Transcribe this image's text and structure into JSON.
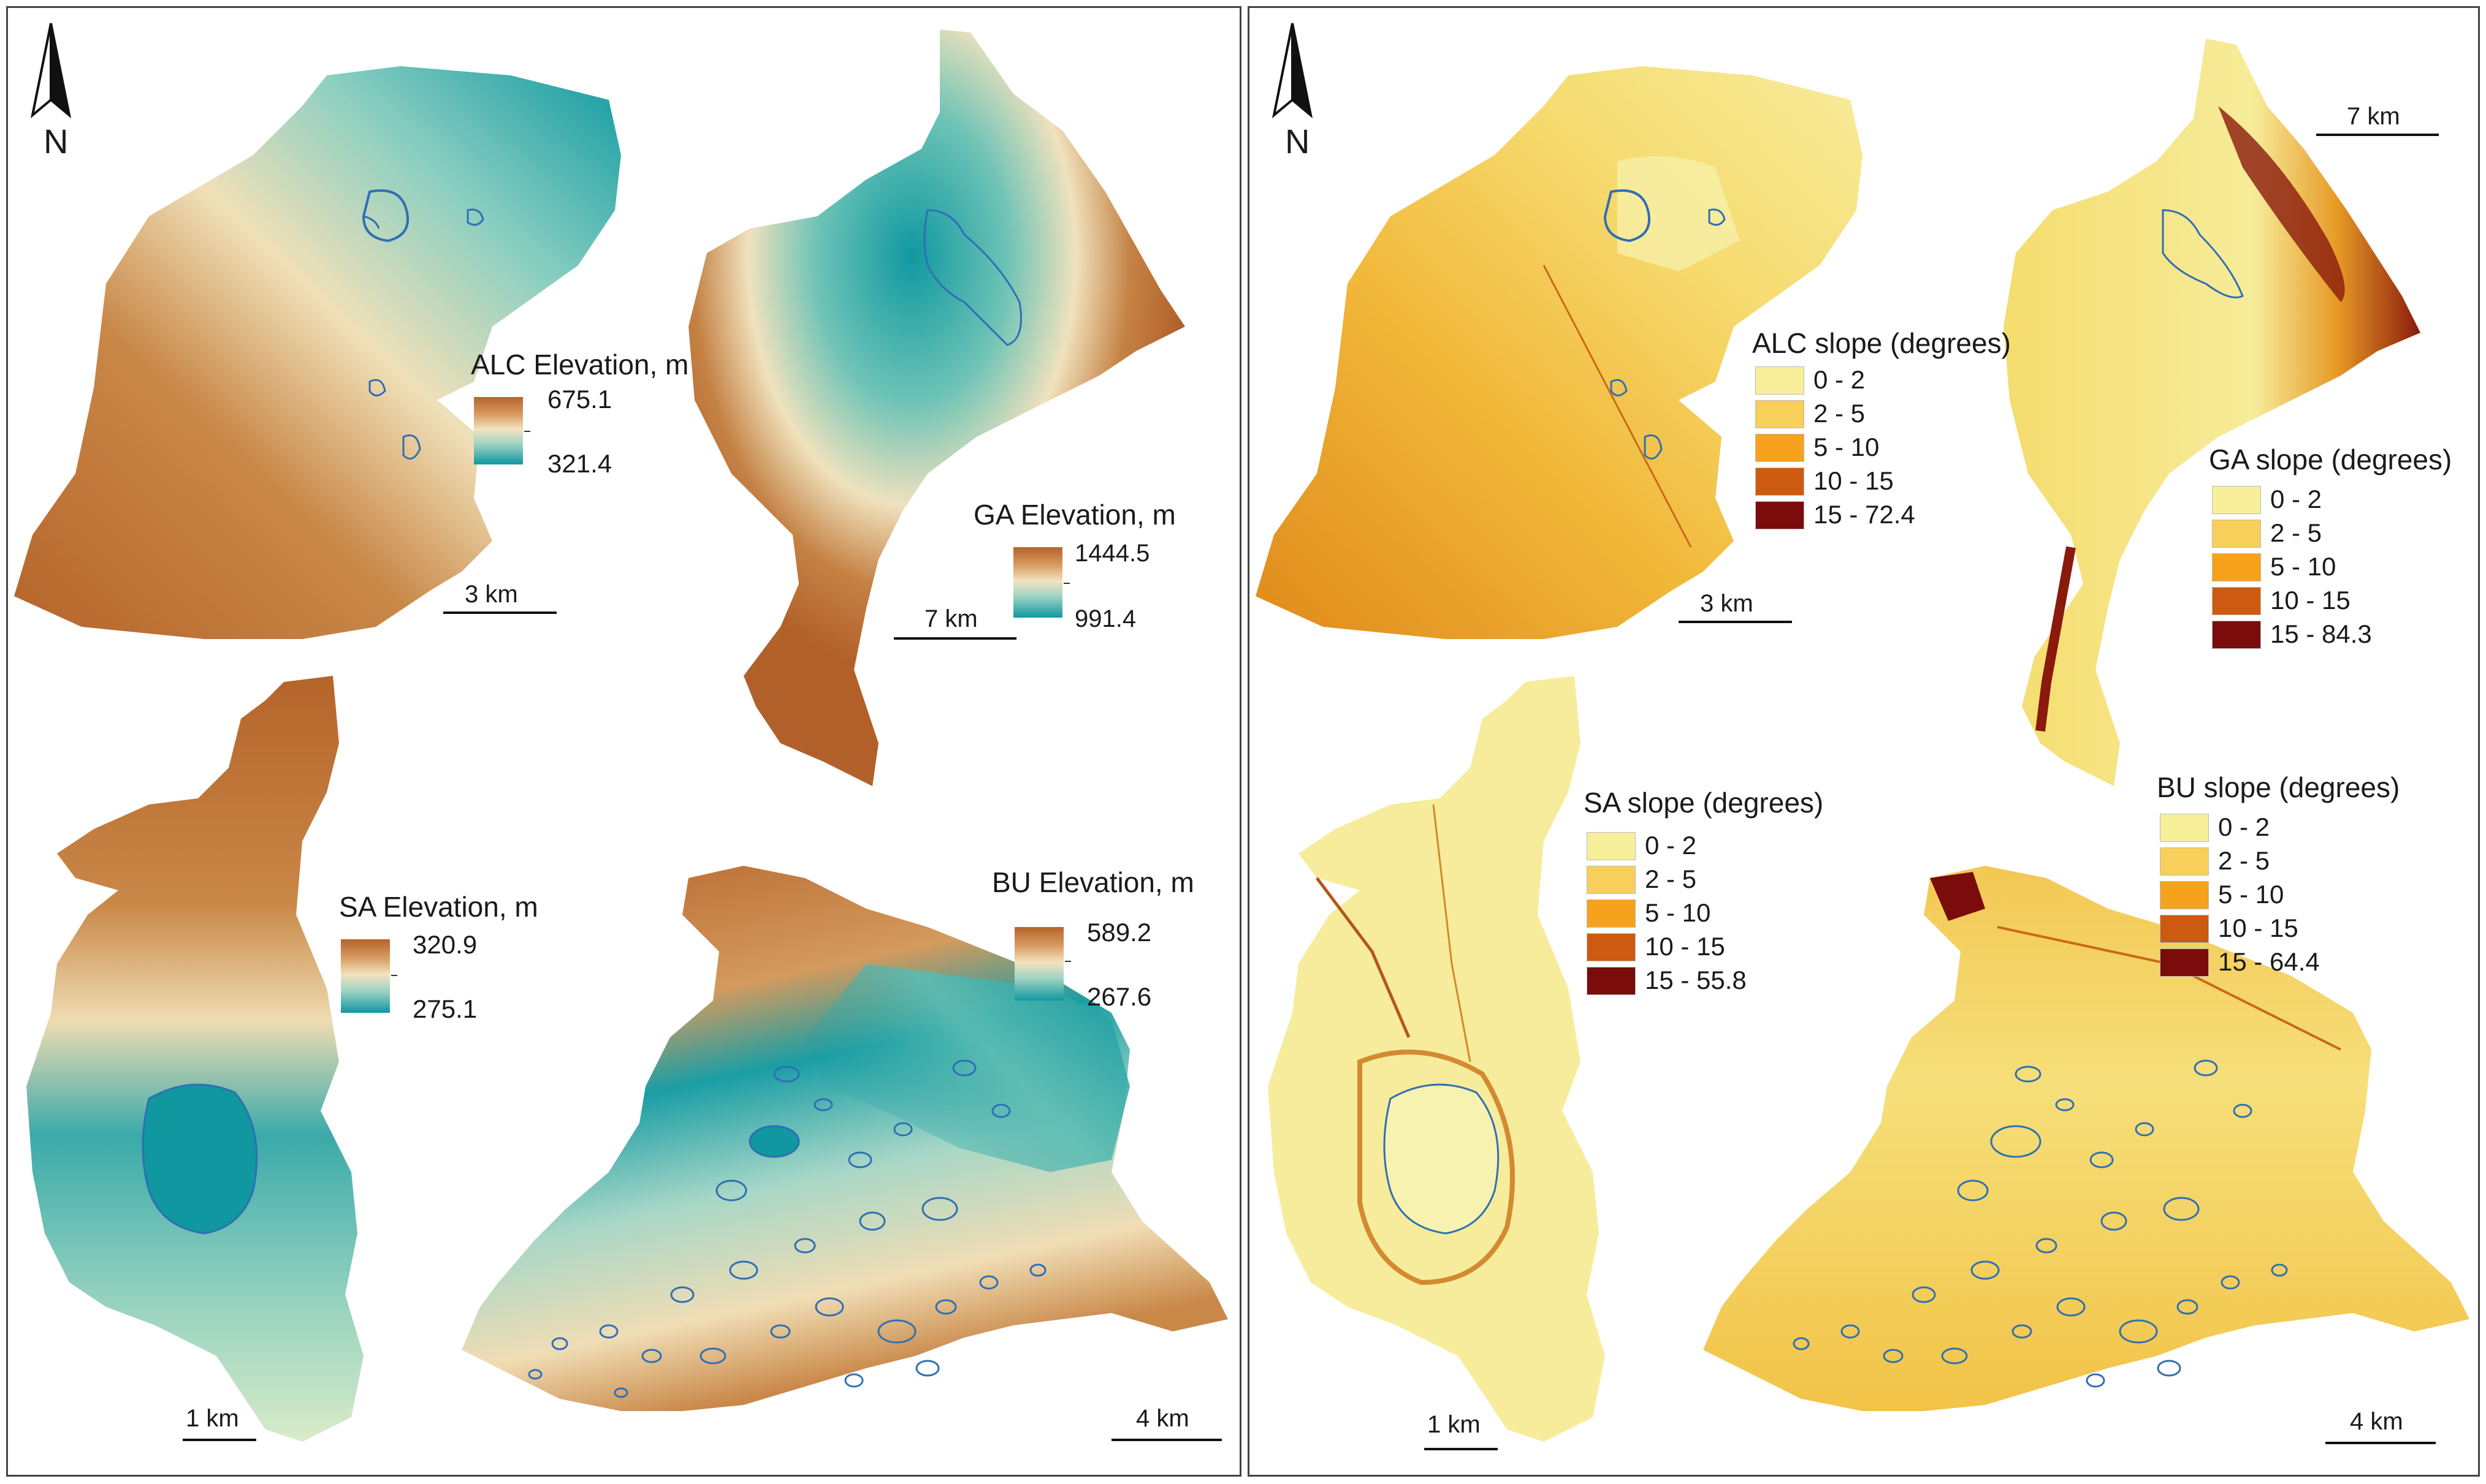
{
  "elevation_panel": {
    "north_label": "N",
    "alc": {
      "title": "ALC Elevation, m",
      "max": "675.1",
      "min": "321.4",
      "scale": "3 km"
    },
    "ga": {
      "title": "GA Elevation, m",
      "max": "1444.5",
      "min": "991.4",
      "scale": "7 km"
    },
    "sa": {
      "title": "SA Elevation, m",
      "max": "320.9",
      "min": "275.1",
      "scale": "1 km"
    },
    "bu": {
      "title": "BU Elevation, m",
      "max": "589.2",
      "min": "267.6",
      "scale": "4 km"
    }
  },
  "slope_panel": {
    "north_label": "N",
    "slope_colors": [
      "#f7ef9a",
      "#f7cf5a",
      "#f7a21c",
      "#cc5a10",
      "#7a0c0c"
    ],
    "alc": {
      "title": "ALC slope (degrees)",
      "classes": [
        "0 - 2",
        "2 - 5",
        "5 - 10",
        "10 - 15",
        "15 - 72.4"
      ],
      "scale": "3 km"
    },
    "ga": {
      "title": "GA slope (degrees)",
      "classes": [
        "0 - 2",
        "2 - 5",
        "5 - 10",
        "10 - 15",
        "15 - 84.3"
      ],
      "scale": "7 km"
    },
    "sa": {
      "title": "SA slope (degrees)",
      "classes": [
        "0 - 2",
        "2 - 5",
        "5 - 10",
        "10 - 15",
        "15 - 55.8"
      ],
      "scale": "1 km"
    },
    "bu": {
      "title": "BU slope (degrees)",
      "classes": [
        "0 - 2",
        "2 - 5",
        "5 - 10",
        "10 - 15",
        "15 - 64.4"
      ],
      "scale": "4 km"
    }
  },
  "colors": {
    "elev_high": "#b5642a",
    "elev_mid": "#f2e3bf",
    "elev_low": "#10979f",
    "wetland_outline": "#2f6fb5",
    "slope_base": "#f5e38a"
  }
}
